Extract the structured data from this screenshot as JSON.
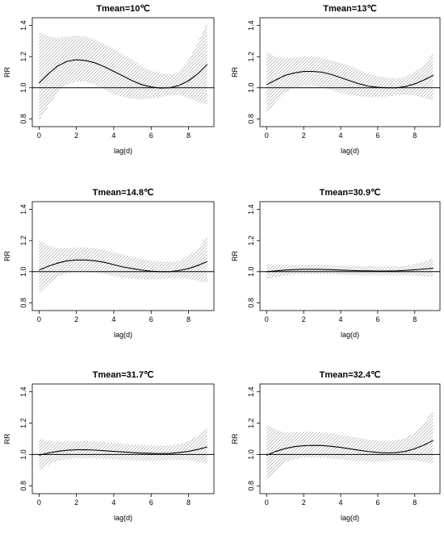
{
  "chart_data": [
    {
      "type": "line",
      "title": "Tmean=10℃",
      "xlabel": "lag(d)",
      "ylabel": "RR",
      "xlim": [
        0,
        9
      ],
      "ylim": [
        0.75,
        1.45
      ],
      "xticks": [
        "0",
        "2",
        "4",
        "6",
        "8"
      ],
      "yticks": [
        "0.8",
        "1.0",
        "1.2",
        "1.4"
      ],
      "reference_line": 1.0,
      "grid": false,
      "ci_fill": "hatched",
      "x": [
        0,
        0.5,
        1,
        1.5,
        2,
        2.5,
        3,
        3.5,
        4,
        4.5,
        5,
        5.5,
        6,
        6.5,
        7,
        7.5,
        8,
        8.5,
        9
      ],
      "rr": [
        1.03,
        1.09,
        1.14,
        1.17,
        1.18,
        1.175,
        1.16,
        1.135,
        1.105,
        1.075,
        1.045,
        1.02,
        1.005,
        0.998,
        1.0,
        1.015,
        1.045,
        1.09,
        1.15
      ],
      "lower": [
        0.79,
        0.88,
        0.97,
        1.02,
        1.04,
        1.04,
        1.02,
        0.99,
        0.96,
        0.94,
        0.93,
        0.925,
        0.93,
        0.94,
        0.95,
        0.955,
        0.935,
        0.91,
        0.89
      ],
      "upper": [
        1.36,
        1.33,
        1.32,
        1.33,
        1.335,
        1.33,
        1.31,
        1.28,
        1.25,
        1.21,
        1.18,
        1.135,
        1.11,
        1.095,
        1.085,
        1.1,
        1.18,
        1.29,
        1.42
      ]
    },
    {
      "type": "line",
      "title": "Tmean=13℃",
      "xlabel": "lag(d)",
      "ylabel": "RR",
      "xlim": [
        0,
        9
      ],
      "ylim": [
        0.75,
        1.45
      ],
      "xticks": [
        "0",
        "2",
        "4",
        "6",
        "8"
      ],
      "yticks": [
        "0.8",
        "1.0",
        "1.2",
        "1.4"
      ],
      "reference_line": 1.0,
      "grid": false,
      "ci_fill": "hatched",
      "x": [
        0,
        0.5,
        1,
        1.5,
        2,
        2.5,
        3,
        3.5,
        4,
        4.5,
        5,
        5.5,
        6,
        6.5,
        7,
        7.5,
        8,
        8.5,
        9
      ],
      "rr": [
        1.02,
        1.05,
        1.08,
        1.095,
        1.105,
        1.105,
        1.1,
        1.085,
        1.065,
        1.045,
        1.025,
        1.01,
        1.003,
        1.0,
        1.0,
        1.008,
        1.025,
        1.05,
        1.08
      ],
      "lower": [
        0.84,
        0.91,
        0.97,
        1.0,
        1.015,
        1.015,
        1.0,
        0.985,
        0.965,
        0.955,
        0.945,
        0.94,
        0.94,
        0.945,
        0.95,
        0.955,
        0.95,
        0.935,
        0.92
      ],
      "upper": [
        1.23,
        1.2,
        1.19,
        1.19,
        1.2,
        1.2,
        1.19,
        1.175,
        1.16,
        1.14,
        1.115,
        1.09,
        1.075,
        1.065,
        1.06,
        1.07,
        1.1,
        1.15,
        1.22
      ]
    },
    {
      "type": "line",
      "title": "Tmean=14.8℃",
      "xlabel": "lag(d)",
      "ylabel": "RR",
      "xlim": [
        0,
        9
      ],
      "ylim": [
        0.75,
        1.45
      ],
      "xticks": [
        "0",
        "2",
        "4",
        "6",
        "8"
      ],
      "yticks": [
        "0.8",
        "1.0",
        "1.2",
        "1.4"
      ],
      "reference_line": 1.0,
      "grid": false,
      "ci_fill": "hatched",
      "x": [
        0,
        0.5,
        1,
        1.5,
        2,
        2.5,
        3,
        3.5,
        4,
        4.5,
        5,
        5.5,
        6,
        6.5,
        7,
        7.5,
        8,
        8.5,
        9
      ],
      "rr": [
        1.01,
        1.035,
        1.055,
        1.07,
        1.075,
        1.075,
        1.07,
        1.06,
        1.045,
        1.03,
        1.02,
        1.01,
        1.003,
        1.0,
        1.0,
        1.008,
        1.02,
        1.04,
        1.065
      ],
      "lower": [
        0.86,
        0.92,
        0.97,
        0.99,
        1.0,
        1.0,
        0.995,
        0.985,
        0.97,
        0.96,
        0.955,
        0.95,
        0.95,
        0.955,
        0.96,
        0.96,
        0.955,
        0.94,
        0.93
      ],
      "upper": [
        1.2,
        1.17,
        1.15,
        1.15,
        1.155,
        1.155,
        1.15,
        1.14,
        1.125,
        1.11,
        1.095,
        1.08,
        1.07,
        1.065,
        1.065,
        1.07,
        1.1,
        1.15,
        1.22
      ]
    },
    {
      "type": "line",
      "title": "Tmean=30.9℃",
      "xlabel": "lag(d)",
      "ylabel": "RR",
      "xlim": [
        0,
        9
      ],
      "ylim": [
        0.75,
        1.45
      ],
      "xticks": [
        "0",
        "2",
        "4",
        "6",
        "8"
      ],
      "yticks": [
        "0.8",
        "1.0",
        "1.2",
        "1.4"
      ],
      "reference_line": 1.0,
      "grid": false,
      "ci_fill": "hatched",
      "x": [
        0,
        0.5,
        1,
        1.5,
        2,
        2.5,
        3,
        3.5,
        4,
        4.5,
        5,
        5.5,
        6,
        6.5,
        7,
        7.5,
        8,
        8.5,
        9
      ],
      "rr": [
        1.0,
        1.005,
        1.01,
        1.013,
        1.015,
        1.015,
        1.014,
        1.012,
        1.01,
        1.008,
        1.006,
        1.005,
        1.004,
        1.004,
        1.005,
        1.008,
        1.012,
        1.017,
        1.022
      ],
      "lower": [
        0.95,
        0.965,
        0.975,
        0.982,
        0.985,
        0.986,
        0.985,
        0.983,
        0.98,
        0.978,
        0.976,
        0.975,
        0.975,
        0.976,
        0.977,
        0.977,
        0.975,
        0.97,
        0.965
      ],
      "upper": [
        1.05,
        1.045,
        1.043,
        1.043,
        1.045,
        1.045,
        1.044,
        1.042,
        1.04,
        1.038,
        1.036,
        1.035,
        1.034,
        1.034,
        1.035,
        1.04,
        1.05,
        1.065,
        1.085
      ]
    },
    {
      "type": "line",
      "title": "Tmean=31.7℃",
      "xlabel": "lag(d)",
      "ylabel": "RR",
      "xlim": [
        0,
        9
      ],
      "ylim": [
        0.75,
        1.45
      ],
      "xticks": [
        "0",
        "2",
        "4",
        "6",
        "8"
      ],
      "yticks": [
        "0.8",
        "1.0",
        "1.2",
        "1.4"
      ],
      "reference_line": 1.0,
      "grid": false,
      "ci_fill": "hatched",
      "x": [
        0,
        0.5,
        1,
        1.5,
        2,
        2.5,
        3,
        3.5,
        4,
        4.5,
        5,
        5.5,
        6,
        6.5,
        7,
        7.5,
        8,
        8.5,
        9
      ],
      "rr": [
        0.995,
        1.01,
        1.02,
        1.027,
        1.03,
        1.03,
        1.028,
        1.024,
        1.02,
        1.016,
        1.012,
        1.009,
        1.007,
        1.006,
        1.007,
        1.012,
        1.02,
        1.032,
        1.048
      ],
      "lower": [
        0.9,
        0.935,
        0.96,
        0.97,
        0.975,
        0.976,
        0.975,
        0.972,
        0.968,
        0.965,
        0.962,
        0.96,
        0.96,
        0.962,
        0.965,
        0.966,
        0.962,
        0.952,
        0.945
      ],
      "upper": [
        1.1,
        1.085,
        1.08,
        1.082,
        1.085,
        1.085,
        1.082,
        1.078,
        1.073,
        1.068,
        1.064,
        1.06,
        1.057,
        1.056,
        1.058,
        1.065,
        1.085,
        1.12,
        1.165
      ]
    },
    {
      "type": "line",
      "title": "Tmean=32.4℃",
      "xlabel": "lag(d)",
      "ylabel": "RR",
      "xlim": [
        0,
        9
      ],
      "ylim": [
        0.75,
        1.45
      ],
      "xticks": [
        "0",
        "2",
        "4",
        "6",
        "8"
      ],
      "yticks": [
        "0.8",
        "1.0",
        "1.2",
        "1.4"
      ],
      "reference_line": 1.0,
      "grid": false,
      "ci_fill": "hatched",
      "x": [
        0,
        0.5,
        1,
        1.5,
        2,
        2.5,
        3,
        3.5,
        4,
        4.5,
        5,
        5.5,
        6,
        6.5,
        7,
        7.5,
        8,
        8.5,
        9
      ],
      "rr": [
        0.995,
        1.02,
        1.038,
        1.05,
        1.056,
        1.058,
        1.057,
        1.052,
        1.045,
        1.036,
        1.027,
        1.019,
        1.013,
        1.01,
        1.012,
        1.02,
        1.037,
        1.06,
        1.09
      ],
      "lower": [
        0.83,
        0.9,
        0.95,
        0.97,
        0.98,
        0.983,
        0.98,
        0.975,
        0.968,
        0.962,
        0.958,
        0.955,
        0.955,
        0.957,
        0.962,
        0.964,
        0.96,
        0.95,
        0.94
      ],
      "upper": [
        1.19,
        1.16,
        1.14,
        1.14,
        1.145,
        1.145,
        1.14,
        1.133,
        1.125,
        1.115,
        1.105,
        1.095,
        1.088,
        1.085,
        1.09,
        1.105,
        1.14,
        1.2,
        1.29
      ]
    }
  ]
}
